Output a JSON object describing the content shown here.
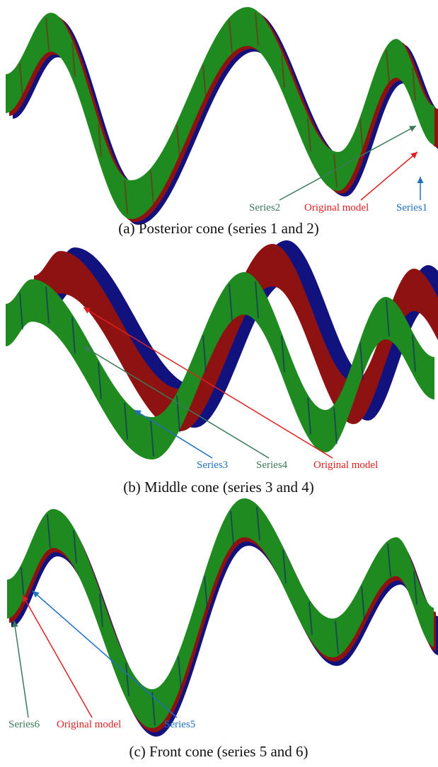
{
  "panels": [
    {
      "caption": "(a) Posterior cone (series 1 and 2)",
      "labels": [
        "Series2",
        "Original model",
        "Series1"
      ]
    },
    {
      "caption": "(b) Middle cone (series 3 and 4)",
      "labels": [
        "Series3",
        "Series4",
        "Original model"
      ]
    },
    {
      "caption": "(c) Front cone (series 5 and 6)",
      "labels": [
        "Series6",
        "Original model",
        "Series5"
      ]
    }
  ]
}
